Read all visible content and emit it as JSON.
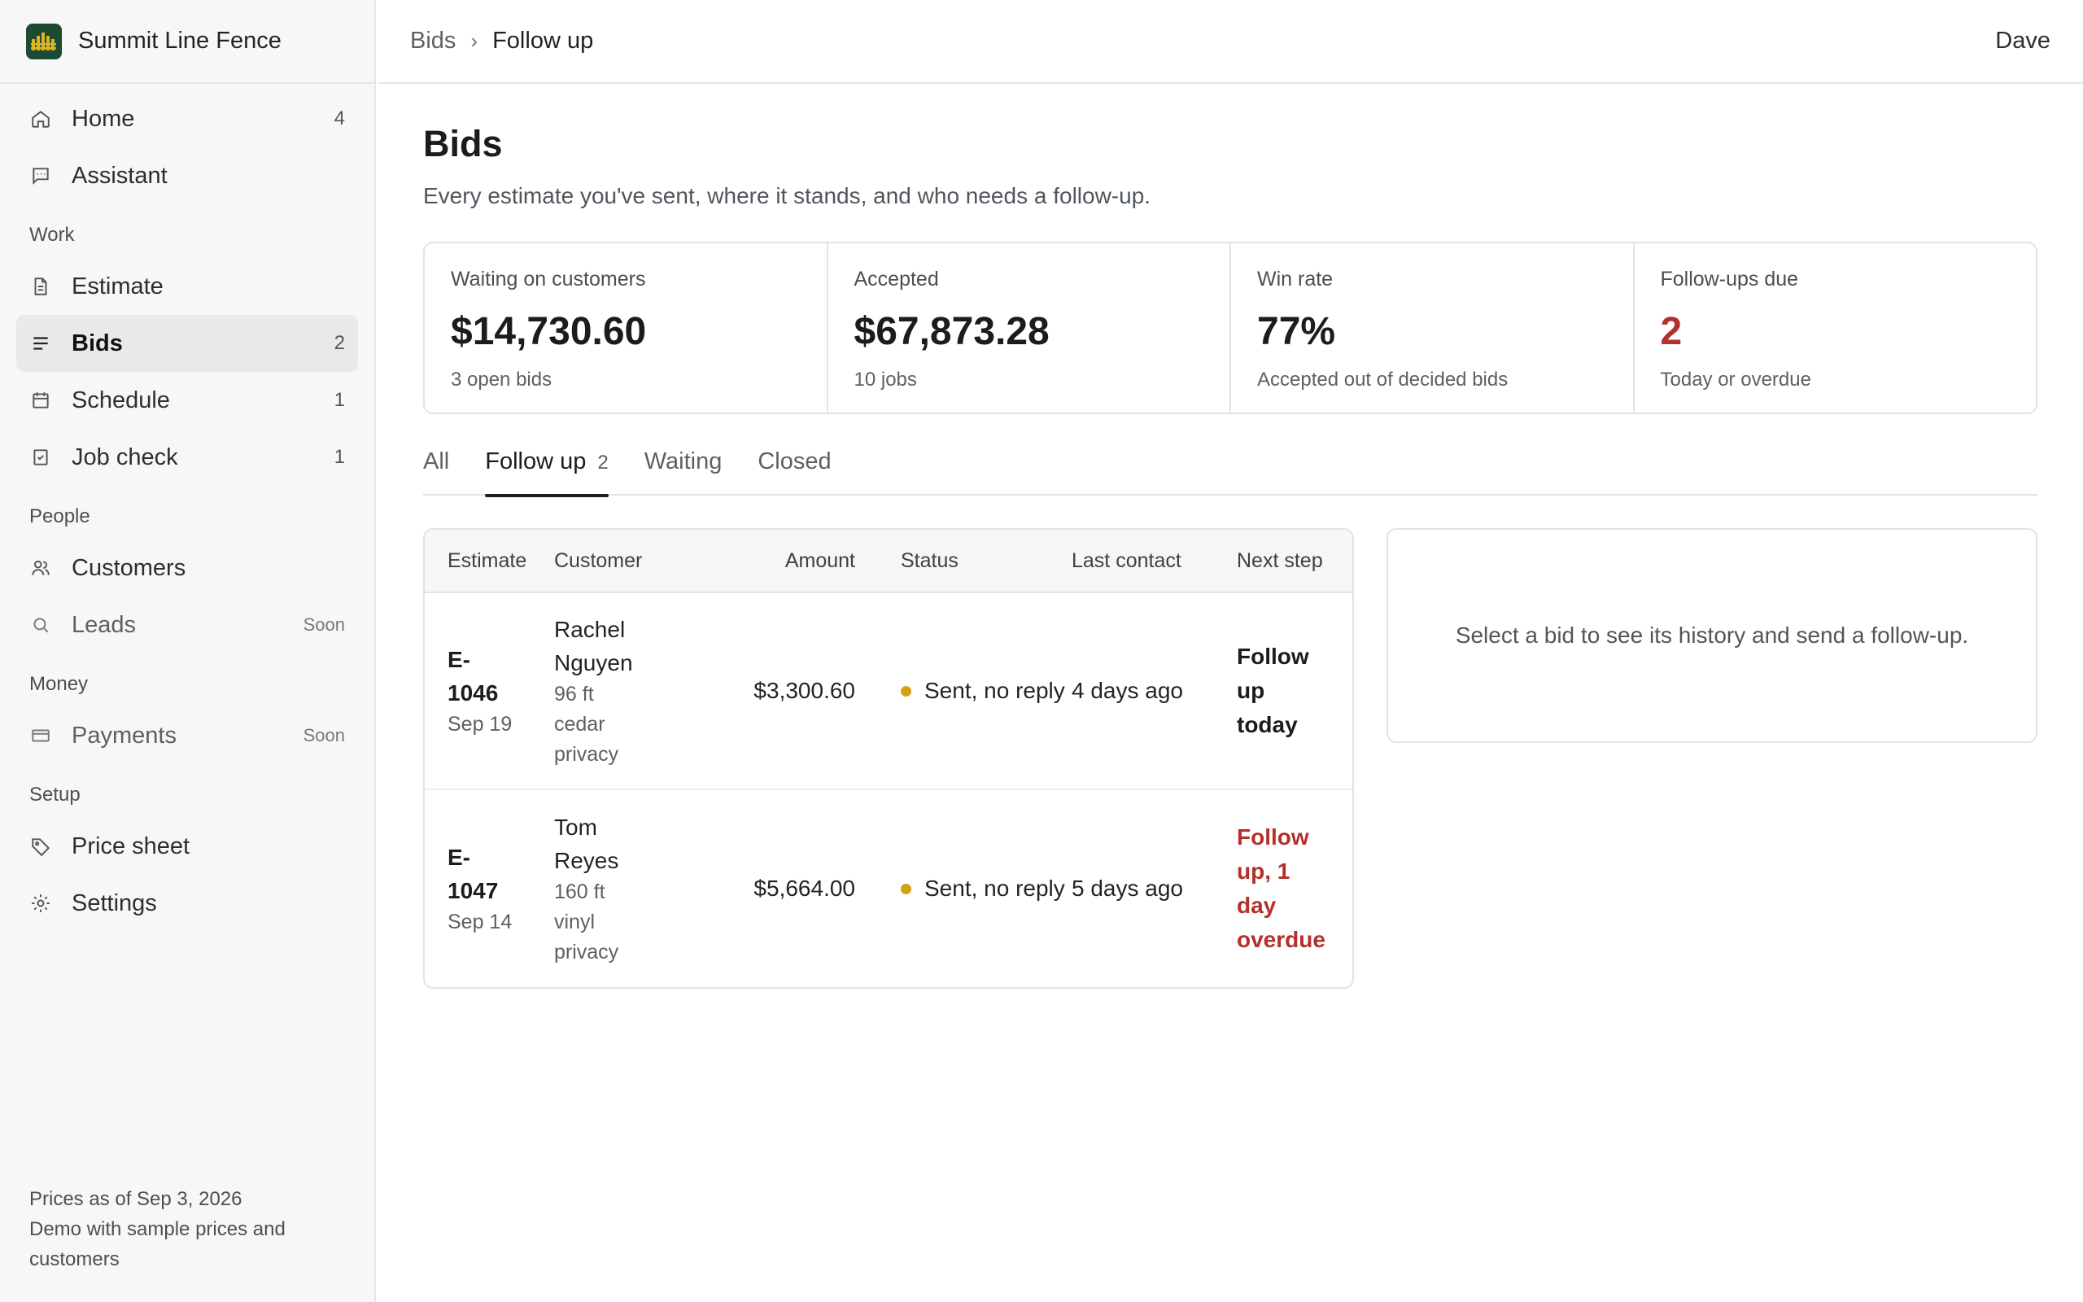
{
  "brand": {
    "name": "Summit Line Fence"
  },
  "sidebar": {
    "top_items": [
      {
        "label": "Home",
        "count": "4",
        "icon": "home-icon"
      },
      {
        "label": "Assistant",
        "count": "",
        "icon": "chat-icon"
      }
    ],
    "sections": {
      "work": "Work",
      "people": "People",
      "money": "Money",
      "setup": "Setup"
    },
    "work_items": [
      {
        "label": "Estimate",
        "count": "",
        "icon": "document-icon"
      },
      {
        "label": "Bids",
        "count": "2",
        "icon": "list-icon"
      },
      {
        "label": "Schedule",
        "count": "1",
        "icon": "calendar-icon"
      },
      {
        "label": "Job check",
        "count": "1",
        "icon": "checkbox-icon"
      }
    ],
    "people_items": [
      {
        "label": "Customers",
        "count": "",
        "icon": "users-icon"
      },
      {
        "label": "Leads",
        "soon": "Soon",
        "icon": "search-icon"
      }
    ],
    "money_items": [
      {
        "label": "Payments",
        "soon": "Soon",
        "icon": "card-icon"
      }
    ],
    "setup_items": [
      {
        "label": "Price sheet",
        "icon": "tag-icon"
      },
      {
        "label": "Settings",
        "icon": "gear-icon"
      }
    ],
    "footer": {
      "prices_as_of": "Prices as of Sep 3, 2026",
      "demo_note": "Demo with sample prices and customers"
    }
  },
  "topbar": {
    "breadcrumb": {
      "parent": "Bids",
      "separator": "›",
      "current": "Follow up"
    },
    "user": "Dave"
  },
  "page": {
    "title": "Bids",
    "subtitle": "Every estimate you've sent, where it stands, and who needs a follow-up."
  },
  "stats": [
    {
      "label": "Waiting on customers",
      "value": "$14,730.60",
      "note": "3 open bids"
    },
    {
      "label": "Accepted",
      "value": "$67,873.28",
      "note": "10 jobs"
    },
    {
      "label": "Win rate",
      "value": "77%",
      "note": "Accepted out of decided bids"
    },
    {
      "label": "Follow-ups due",
      "value": "2",
      "note": "Today or overdue"
    }
  ],
  "tabs": [
    {
      "label": "All",
      "count": ""
    },
    {
      "label": "Follow up",
      "count": "2"
    },
    {
      "label": "Waiting",
      "count": ""
    },
    {
      "label": "Closed",
      "count": ""
    }
  ],
  "table": {
    "headers": [
      "Estimate",
      "Customer",
      "Amount",
      "Status",
      "Last contact",
      "Next step"
    ],
    "rows": [
      {
        "estimate": "E-1046",
        "date": "Sep 19",
        "customer": "Rachel Nguyen",
        "job": "96 ft cedar privacy",
        "amount": "$3,300.60",
        "status": "Sent, no reply",
        "last_contact": "4 days ago",
        "next_step": "Follow up today"
      },
      {
        "estimate": "E-1047",
        "date": "Sep 14",
        "customer": "Tom Reyes",
        "job": "160 ft vinyl privacy",
        "amount": "$5,664.00",
        "status": "Sent, no reply",
        "last_contact": "5 days ago",
        "next_step": "Follow up, 1 day overdue"
      }
    ]
  },
  "detail": {
    "empty_message": "Select a bid to see its history and send a follow-up."
  },
  "colors": {
    "brand": "#1c4a33",
    "alert": "#b3302c",
    "status_dot": "#d4a10f"
  }
}
